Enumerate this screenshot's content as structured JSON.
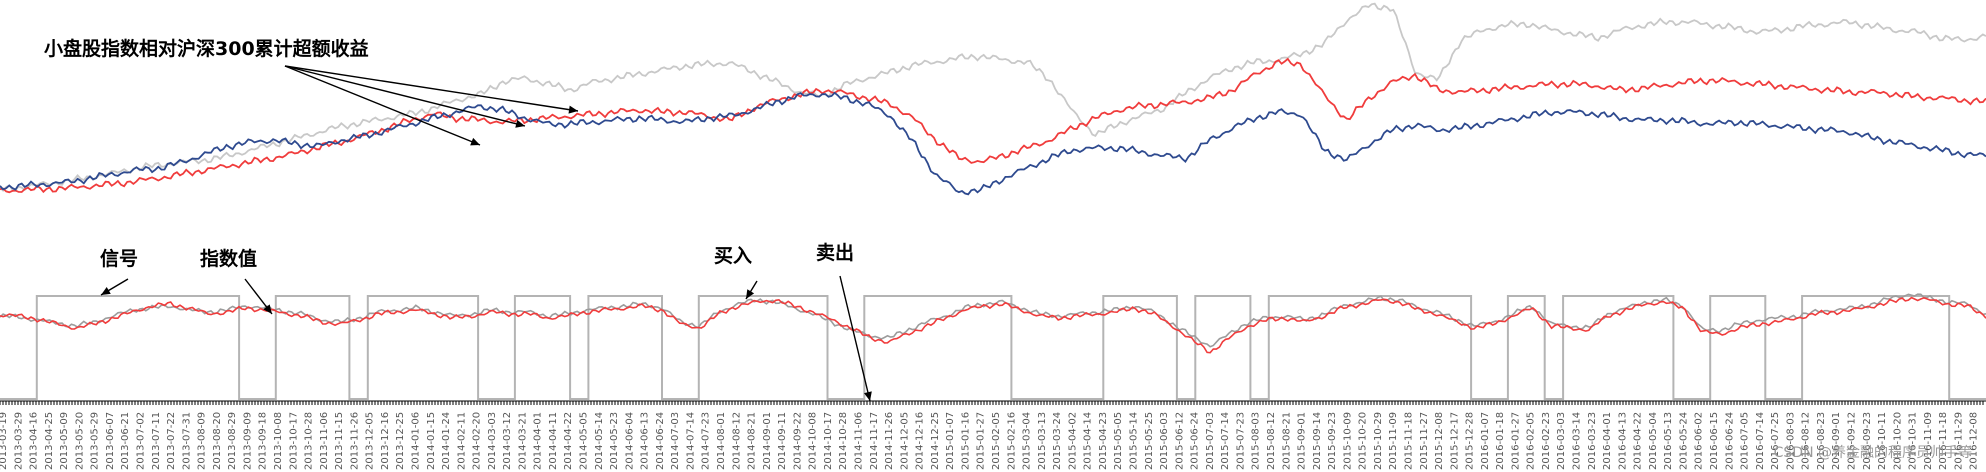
{
  "chart_data": {
    "type": "line",
    "title": "小盘股指数相对沪深300累计超额收益",
    "annotations": {
      "signal": "信号",
      "index_value": "指数值",
      "buy": "买入",
      "sell": "卖出"
    },
    "watermark": "CSDN @养金融的程序员帅手等",
    "colors": {
      "gray": "#c8c8c8",
      "red": "#f03c3c",
      "blue": "#2e4a8f",
      "signal": "#b4b4b4",
      "index_gray": "#9c9c9c"
    },
    "top_panel": {
      "series": [
        {
          "color": "gray",
          "values": [
            0.5,
            3,
            6,
            9,
            13,
            17,
            22,
            25,
            28,
            30,
            34,
            40,
            46,
            52,
            58,
            64,
            68,
            72,
            76,
            82,
            90,
            95,
            108,
            112,
            106,
            100,
            108,
            112,
            116,
            120,
            124,
            126,
            127,
            118,
            108,
            98,
            94,
            105,
            112,
            118,
            125,
            128,
            132,
            134,
            130,
            128,
            110,
            78,
            55,
            66,
            74,
            82,
            98,
            112,
            122,
            128,
            130,
            136,
            146,
            170,
            185,
            182,
            118,
            110,
            150,
            160,
            165,
            166,
            160,
            156,
            152,
            160,
            165,
            168,
            168,
            165,
            162,
            158,
            160,
            164,
            166,
            168,
            164,
            160,
            158,
            152,
            150,
            154
          ]
        },
        {
          "color": "red",
          "values": [
            -1,
            0,
            1,
            2,
            4,
            6,
            9,
            12,
            16,
            20,
            24,
            28,
            32,
            37,
            43,
            48,
            55,
            62,
            70,
            76,
            72,
            70,
            68,
            70,
            72,
            74,
            76,
            78,
            80,
            78,
            78,
            74,
            70,
            82,
            90,
            95,
            100,
            97,
            92,
            86,
            72,
            50,
            32,
            28,
            35,
            42,
            50,
            62,
            72,
            80,
            84,
            86,
            88,
            92,
            100,
            116,
            128,
            126,
            95,
            70,
            92,
            108,
            115,
            100,
            98,
            100,
            102,
            104,
            106,
            106,
            104,
            100,
            102,
            105,
            108,
            110,
            108,
            106,
            104,
            102,
            100,
            98,
            98,
            96,
            93,
            92,
            90,
            88
          ]
        },
        {
          "color": "blue",
          "values": [
            3,
            4,
            6,
            8,
            12,
            16,
            20,
            22,
            28,
            36,
            44,
            48,
            50,
            46,
            44,
            50,
            54,
            60,
            66,
            72,
            78,
            84,
            80,
            72,
            66,
            66,
            68,
            70,
            72,
            70,
            68,
            72,
            74,
            80,
            88,
            94,
            96,
            92,
            86,
            74,
            48,
            15,
            -2,
            0,
            12,
            22,
            32,
            40,
            42,
            42,
            38,
            34,
            32,
            50,
            62,
            72,
            78,
            76,
            40,
            30,
            46,
            60,
            65,
            60,
            62,
            66,
            70,
            74,
            78,
            78,
            76,
            72,
            70,
            70,
            68,
            66,
            68,
            66,
            64,
            62,
            60,
            58,
            52,
            48,
            44,
            40,
            36,
            34
          ]
        }
      ]
    },
    "bottom_panel": {
      "index_series": [
        {
          "color": "red",
          "values": [
            5,
            4,
            1,
            -4,
            -8,
            -4,
            2,
            8,
            14,
            16,
            12,
            6,
            8,
            12,
            10,
            7,
            4,
            -2,
            -4,
            0,
            6,
            8,
            10,
            6,
            2,
            4,
            8,
            6,
            6,
            2,
            4,
            8,
            10,
            12,
            14,
            10,
            -4,
            -8,
            6,
            14,
            18,
            20,
            14,
            8,
            0,
            -8,
            -18,
            -22,
            -14,
            -6,
            2,
            10,
            14,
            16,
            10,
            4,
            2,
            4,
            6,
            8,
            12,
            6,
            -6,
            -20,
            -32,
            -18,
            -6,
            0,
            2,
            -2,
            4,
            12,
            16,
            20,
            18,
            10,
            6,
            -2,
            -8,
            -4,
            4,
            12,
            -6,
            -8,
            -10,
            4,
            10,
            16,
            18,
            12,
            -12,
            -14,
            -8,
            -4,
            -2,
            2,
            6,
            8,
            10,
            14,
            18,
            22,
            20,
            16,
            14,
            4
          ]
        },
        {
          "color": "index_gray",
          "values": [
            4,
            3,
            0,
            -3,
            -6,
            -2,
            4,
            10,
            12,
            14,
            10,
            8,
            10,
            14,
            12,
            9,
            6,
            0,
            -2,
            2,
            8,
            10,
            12,
            8,
            4,
            6,
            10,
            8,
            8,
            4,
            6,
            10,
            12,
            14,
            16,
            12,
            -2,
            -6,
            8,
            16,
            20,
            18,
            12,
            6,
            -2,
            -10,
            -16,
            -18,
            -10,
            -2,
            4,
            12,
            16,
            18,
            12,
            6,
            4,
            6,
            8,
            10,
            14,
            8,
            -4,
            -16,
            -26,
            -14,
            -2,
            2,
            4,
            0,
            6,
            14,
            18,
            22,
            20,
            12,
            8,
            0,
            -6,
            -2,
            6,
            14,
            -4,
            -6,
            -8,
            6,
            12,
            18,
            20,
            14,
            -10,
            -10,
            -4,
            0,
            2,
            4,
            8,
            10,
            12,
            16,
            22,
            26,
            22,
            18,
            16,
            6
          ]
        }
      ],
      "signal": [
        0,
        0,
        1,
        1,
        1,
        1,
        1,
        1,
        1,
        1,
        1,
        1,
        1,
        0,
        0,
        1,
        1,
        1,
        1,
        0,
        1,
        1,
        1,
        1,
        1,
        1,
        0,
        0,
        1,
        1,
        1,
        0,
        1,
        1,
        1,
        1,
        0,
        0,
        1,
        1,
        1,
        1,
        1,
        1,
        1,
        0,
        0,
        1,
        1,
        1,
        1,
        1,
        1,
        1,
        1,
        0,
        0,
        0,
        0,
        0,
        1,
        1,
        1,
        1,
        0,
        1,
        1,
        1,
        0,
        1,
        1,
        1,
        1,
        1,
        1,
        1,
        1,
        1,
        1,
        1,
        0,
        0,
        1,
        1,
        0,
        1,
        1,
        1,
        1,
        1,
        1,
        0,
        0,
        1,
        1,
        1,
        0,
        0,
        1,
        1,
        1,
        1,
        1,
        1,
        1,
        1,
        0,
        0
      ]
    },
    "x_tick_labels": [
      "2013-03-19",
      "2013-03-29",
      "2013-04-16",
      "2013-04-25",
      "2013-05-09",
      "2013-05-20",
      "2013-05-29",
      "2013-06-07",
      "2013-06-21",
      "2013-07-02",
      "2013-07-11",
      "2013-07-22",
      "2013-07-31",
      "2013-08-09",
      "2013-08-20",
      "2013-08-29",
      "2013-09-09",
      "2013-09-18",
      "2013-10-08",
      "2013-10-17",
      "2013-10-28",
      "2013-11-06",
      "2013-11-15",
      "2013-11-26",
      "2013-12-05",
      "2013-12-16",
      "2013-12-25",
      "2014-01-06",
      "2014-01-15",
      "2014-01-24",
      "2014-02-11",
      "2014-02-20",
      "2014-03-03",
      "2014-03-12",
      "2014-03-21",
      "2014-04-01",
      "2014-04-11",
      "2014-04-22",
      "2014-05-05",
      "2014-05-14",
      "2014-05-23",
      "2014-06-04",
      "2014-06-13",
      "2014-06-24",
      "2014-07-03",
      "2014-07-14",
      "2014-07-23",
      "2014-08-01",
      "2014-08-12",
      "2014-08-21",
      "2014-09-01",
      "2014-09-11",
      "2014-09-22",
      "2014-10-08",
      "2014-10-17",
      "2014-10-28",
      "2014-11-06",
      "2014-11-17",
      "2014-11-26",
      "2014-12-05",
      "2014-12-16",
      "2014-12-25",
      "2015-01-07",
      "2015-01-16",
      "2015-01-27",
      "2015-02-05",
      "2015-02-16",
      "2015-03-04",
      "2015-03-13",
      "2015-03-24",
      "2015-04-02",
      "2015-04-14",
      "2015-04-23",
      "2015-05-05",
      "2015-05-14",
      "2015-05-25",
      "2015-06-03",
      "2015-06-12",
      "2015-06-24",
      "2015-07-03",
      "2015-07-14",
      "2015-07-23",
      "2015-08-03",
      "2015-08-12",
      "2015-08-21",
      "2015-09-01",
      "2015-09-14",
      "2015-09-23",
      "2015-10-09",
      "2015-10-20",
      "2015-10-29",
      "2015-11-09",
      "2015-11-18",
      "2015-11-27",
      "2015-12-08",
      "2015-12-17",
      "2015-12-28",
      "2016-01-07",
      "2016-01-18",
      "2016-01-27",
      "2016-02-05",
      "2016-02-23",
      "2016-03-03",
      "2016-03-14",
      "2016-03-23",
      "2016-04-01",
      "2016-04-13",
      "2016-04-22",
      "2016-05-04",
      "2016-05-13",
      "2016-05-24",
      "2016-06-02",
      "2016-06-15",
      "2016-06-24",
      "2016-07-05",
      "2016-07-14",
      "2016-07-25",
      "2016-08-03",
      "2016-08-12",
      "2016-08-23",
      "2016-09-01",
      "2016-09-12",
      "2016-09-23",
      "2016-10-11",
      "2016-10-20",
      "2016-10-31",
      "2016-11-09",
      "2016-11-18",
      "2016-11-29",
      "2016-12-08"
    ]
  }
}
